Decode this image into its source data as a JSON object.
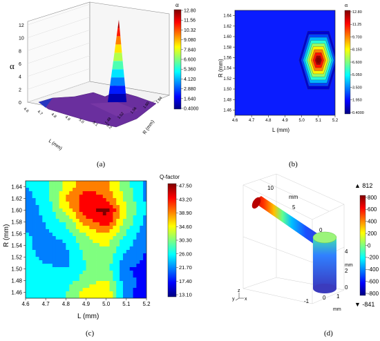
{
  "panels": {
    "a": {
      "caption": "(a)"
    },
    "b": {
      "caption": "(b)"
    },
    "c": {
      "caption": "(c)"
    },
    "d": {
      "caption": "(d)"
    }
  },
  "colors": {
    "jet": [
      "#00007f",
      "#0000ff",
      "#007fff",
      "#00ffff",
      "#7fff7f",
      "#ffff00",
      "#ff7f00",
      "#ff0000",
      "#7f0000"
    ],
    "magma": [
      "#000004",
      "#3b0f70",
      "#8c2981",
      "#de4968",
      "#fe9f6d",
      "#fcfdbf"
    ]
  },
  "chart_data": [
    {
      "id": "a",
      "type": "surface3d",
      "zlabel": "α",
      "xlabel": "L (mm)",
      "ylabel": "R (mm)",
      "z_ticks": [
        "0",
        "2",
        "4",
        "6",
        "8",
        "10",
        "12"
      ],
      "x_ticks": [
        "4.6",
        "4.7",
        "4.8",
        "4.9",
        "5.0",
        "5.1",
        "5.2"
      ],
      "y_ticks": [
        "1.64",
        "1.60",
        "1.56",
        "1.52",
        "1.48"
      ],
      "colorbar_title": "α",
      "colorbar_ticks": [
        "12.80",
        "11.56",
        "10.32",
        "9.080",
        "7.840",
        "6.600",
        "5.360",
        "4.120",
        "2.880",
        "1.640",
        "0.4000"
      ],
      "peak": {
        "L": 5.1,
        "R": 1.55,
        "alpha": 12.8
      },
      "base_alpha": 0.4
    },
    {
      "id": "b",
      "type": "heatmap",
      "title": "α",
      "xlabel": "L (mm)",
      "ylabel": "R (mm)",
      "xlim": [
        4.6,
        5.2
      ],
      "ylim": [
        1.45,
        1.65
      ],
      "x_ticks": [
        "4.6",
        "4.7",
        "4.8",
        "4.9",
        "5.0",
        "5.1",
        "5.2"
      ],
      "y_ticks": [
        "1.64",
        "1.62",
        "1.60",
        "1.58",
        "1.56",
        "1.54",
        "1.52",
        "1.50",
        "1.48",
        "1.46"
      ],
      "colorbar_ticks": [
        "12.80",
        "11.25",
        "9.700",
        "8.150",
        "6.600",
        "5.050",
        "3.500",
        "1.950",
        "0.4000"
      ],
      "peak": {
        "L": 5.1,
        "R": 1.555,
        "alpha": 12.8
      },
      "base_alpha": 0.4
    },
    {
      "id": "c",
      "type": "heatmap",
      "title": "Q-factor",
      "xlabel": "L (mm)",
      "ylabel": "R (mm)",
      "xlim": [
        4.6,
        5.2
      ],
      "ylim": [
        1.45,
        1.65
      ],
      "x_ticks": [
        "4.6",
        "4.7",
        "4.8",
        "4.9",
        "5.0",
        "5.1",
        "5.2"
      ],
      "y_ticks": [
        "1.64",
        "1.62",
        "1.60",
        "1.58",
        "1.56",
        "1.54",
        "1.52",
        "1.50",
        "1.48",
        "1.46"
      ],
      "colorbar_ticks": [
        "47.50",
        "43.20",
        "38.90",
        "34.60",
        "30.30",
        "26.00",
        "21.70",
        "17.40",
        "13.10"
      ],
      "columns_L": [
        4.6,
        4.7,
        4.8,
        4.9,
        5.0,
        5.1,
        5.2
      ],
      "rows_R": [
        1.64,
        1.62,
        1.6,
        1.58,
        1.56,
        1.54,
        1.52,
        1.5,
        1.48,
        1.46
      ],
      "values": [
        [
          24,
          27,
          33,
          40,
          38,
          30,
          22
        ],
        [
          22,
          26,
          37,
          44,
          41,
          31,
          23
        ],
        [
          21,
          25,
          34,
          44,
          47,
          33,
          24
        ],
        [
          22,
          24,
          29,
          39,
          44,
          31,
          22
        ],
        [
          24,
          23,
          26,
          33,
          37,
          28,
          21
        ],
        [
          26,
          20,
          24,
          30,
          33,
          25,
          20
        ],
        [
          26,
          22,
          22,
          29,
          31,
          22,
          19
        ],
        [
          28,
          25,
          24,
          28,
          30,
          20,
          18
        ],
        [
          27,
          27,
          26,
          30,
          33,
          21,
          18
        ],
        [
          25,
          27,
          28,
          34,
          37,
          21,
          17
        ]
      ]
    },
    {
      "id": "d",
      "type": "field3d",
      "colorbar_max_label": "▲ 812",
      "colorbar_min_label": "▼ -841",
      "colorbar_ticks": [
        "800",
        "600",
        "400",
        "200",
        "0",
        "-200",
        "-400",
        "-600",
        "-800"
      ],
      "range": [
        -841,
        812
      ],
      "axis_top_ticks": [
        "10",
        "5",
        "0"
      ],
      "axis_top_unit": "mm",
      "axis_right_ticks": [
        "4",
        "2",
        "0"
      ],
      "axis_right_unit": "mm",
      "axis_bottom_ticks": [
        "-1",
        "0",
        "1"
      ],
      "axis_bottom_unit": "mm",
      "triad": {
        "z": "z",
        "y": "y",
        "x": "x"
      }
    }
  ]
}
